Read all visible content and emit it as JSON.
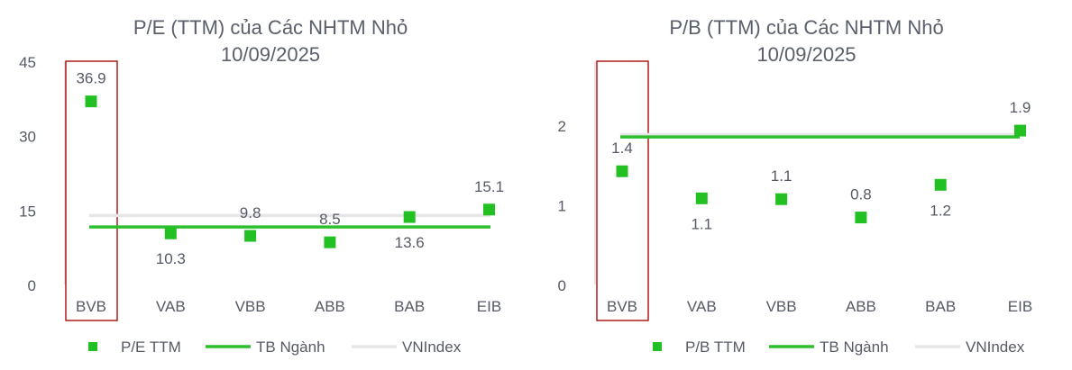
{
  "colors": {
    "marker": "#22c022",
    "industry_line": "#2ebf2e",
    "vnindex_line": "#e6e6e6",
    "highlight_box": "#b01c1c",
    "axis": "#c8c8c8",
    "text": "#555a66"
  },
  "chart_data": [
    {
      "type": "scatter",
      "title": "P/E (TTM) của Các NHTM Nhỏ",
      "subtitle": "10/09/2025",
      "categories": [
        "BVB",
        "VAB",
        "VBB",
        "ABB",
        "BAB",
        "EIB"
      ],
      "series": [
        {
          "name": "P/E TTM",
          "values": [
            36.9,
            10.3,
            9.8,
            8.5,
            13.6,
            15.1
          ],
          "labels": [
            "36.9",
            "10.3",
            "9.8",
            "8.5",
            "13.6",
            "15.1"
          ]
        },
        {
          "name": "TB Ngành",
          "value": 11.6
        },
        {
          "name": "VNIndex",
          "value": 13.9
        }
      ],
      "label_position": [
        "above",
        "below",
        "above",
        "above",
        "below",
        "above"
      ],
      "yticks": [
        "0",
        "15",
        "30",
        "45"
      ],
      "ylim": [
        0,
        45
      ],
      "highlight": "BVB",
      "legend": "bottom"
    },
    {
      "type": "scatter",
      "title": "P/B (TTM) của Các NHTM Nhỏ",
      "subtitle": "10/09/2025",
      "categories": [
        "BVB",
        "VAB",
        "VBB",
        "ABB",
        "BAB",
        "EIB"
      ],
      "series": [
        {
          "name": "P/B TTM",
          "values": [
            1.42,
            1.08,
            1.07,
            0.84,
            1.25,
            1.93
          ],
          "labels": [
            "1.4",
            "1.1",
            "1.1",
            "0.8",
            "1.2",
            "1.9"
          ]
        },
        {
          "name": "TB Ngành",
          "value": 1.85
        },
        {
          "name": "VNIndex",
          "value": 1.88
        }
      ],
      "label_position": [
        "above",
        "below",
        "above",
        "above",
        "below",
        "above"
      ],
      "yticks": [
        "0",
        "1",
        "2"
      ],
      "ylim": [
        0,
        2.8
      ],
      "highlight": "BVB",
      "legend": "bottom"
    }
  ]
}
